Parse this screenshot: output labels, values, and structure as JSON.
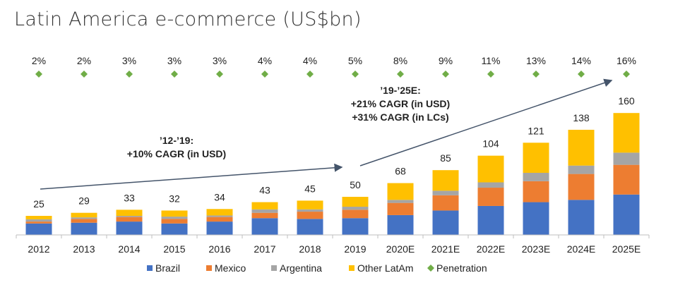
{
  "title": "Latin America e-commerce (US$bn)",
  "chart_data": {
    "type": "bar",
    "stacked": true,
    "title": "Latin America e-commerce (US$bn)",
    "categories": [
      "2012",
      "2013",
      "2014",
      "2015",
      "2016",
      "2017",
      "2018",
      "2019",
      "2020E",
      "2021E",
      "2022E",
      "2023E",
      "2024E",
      "2025E"
    ],
    "totals": [
      25,
      29,
      33,
      32,
      34,
      43,
      45,
      50,
      68,
      85,
      104,
      121,
      138,
      160
    ],
    "series": [
      {
        "name": "Brazil",
        "color": "#4472c4",
        "values": [
          15,
          16,
          17.5,
          15,
          17.5,
          22,
          21,
          22,
          26,
          32,
          38,
          43,
          46,
          53
        ]
      },
      {
        "name": "Mexico",
        "color": "#ed7d31",
        "values": [
          2.5,
          5,
          6,
          6,
          6,
          7,
          9.5,
          11,
          16,
          20,
          24,
          27.5,
          34,
          39
        ]
      },
      {
        "name": "Argentina",
        "color": "#a5a5a5",
        "values": [
          3,
          2,
          1.5,
          3,
          2,
          4.5,
          3,
          4,
          4,
          6,
          7,
          11,
          11,
          16
        ]
      },
      {
        "name": "Other LatAm",
        "color": "#ffc000",
        "values": [
          4.5,
          6,
          8,
          8,
          8.5,
          9.5,
          11.5,
          13,
          22,
          27,
          35,
          39.5,
          47,
          52
        ]
      }
    ],
    "penetration": {
      "name": "Penetration",
      "color": "#70ad47",
      "labels": [
        "2%",
        "2%",
        "3%",
        "3%",
        "3%",
        "4%",
        "4%",
        "5%",
        "8%",
        "9%",
        "11%",
        "13%",
        "14%",
        "16%"
      ]
    },
    "annotations": [
      {
        "lines": [
          "’12-’19:",
          "+10% CAGR (in USD)"
        ]
      },
      {
        "lines": [
          "’19-’25E:",
          "+21% CAGR (in USD)",
          "+31% CAGR (in LCs)"
        ]
      }
    ],
    "legend": "bottom",
    "ylim": [
      0,
      160
    ],
    "xlabel": "",
    "ylabel": ""
  }
}
